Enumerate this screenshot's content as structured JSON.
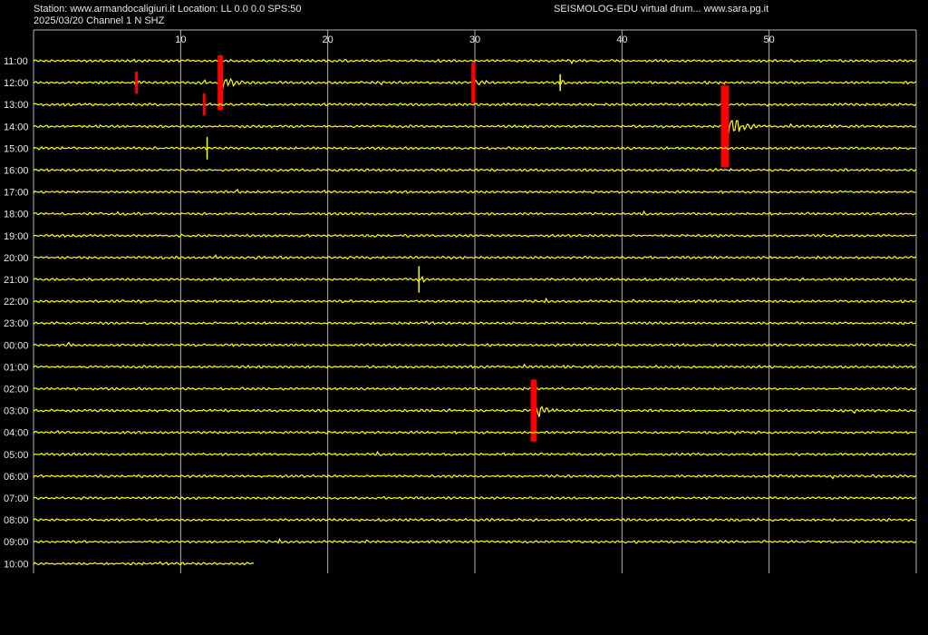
{
  "header": {
    "station_line": "Station: www.armandocaligiuri.it Location: LL 0.0 0.0 SPS:50",
    "date_channel": "2025/03/20  Channel 1 N SHZ",
    "software": "SEISMOLOG-EDU virtual drum... www.sara.pg.it"
  },
  "colors": {
    "background": "#000000",
    "trace": "#ffff00",
    "event": "#ff0000",
    "grid": "#b4b4b4",
    "text": "#e6e6e6"
  },
  "chart_data": {
    "type": "line",
    "title": "",
    "xlabel": "",
    "ylabel": "",
    "x_unit": "minutes",
    "xlim": [
      0,
      60
    ],
    "x_ticks": [
      10,
      20,
      30,
      40,
      50
    ],
    "grid": true,
    "rows": [
      "11:00",
      "12:00",
      "13:00",
      "14:00",
      "15:00",
      "16:00",
      "17:00",
      "18:00",
      "19:00",
      "20:00",
      "21:00",
      "22:00",
      "23:00",
      "00:00",
      "01:00",
      "02:00",
      "03:00",
      "04:00",
      "05:00",
      "06:00",
      "07:00",
      "08:00",
      "09:00",
      "10:00"
    ],
    "last_row_end_minute": 15,
    "events": [
      {
        "row": "12:00",
        "minute": 7.0,
        "amplitude": 12,
        "color": "red",
        "coda": 1.5
      },
      {
        "row": "12:00",
        "minute": 12.7,
        "amplitude": 30,
        "color": "red",
        "coda": 2.5
      },
      {
        "row": "12:00",
        "minute": 29.9,
        "amplitude": 22,
        "color": "red",
        "coda": 2.0
      },
      {
        "row": "12:00",
        "minute": 35.8,
        "amplitude": 9,
        "color": "yellow",
        "coda": 1.5
      },
      {
        "row": "13:00",
        "minute": 11.6,
        "amplitude": 12,
        "color": "red",
        "coda": 1.5
      },
      {
        "row": "14:00",
        "minute": 47.0,
        "amplitude": 45,
        "color": "red",
        "coda": 3.0
      },
      {
        "row": "15:00",
        "minute": 11.8,
        "amplitude": 12,
        "color": "yellow",
        "coda": 0.1
      },
      {
        "row": "21:00",
        "minute": 26.2,
        "amplitude": 14,
        "color": "yellow",
        "coda": 1.5
      },
      {
        "row": "03:00",
        "minute": 34.0,
        "amplitude": 34,
        "color": "red",
        "coda": 2.5
      }
    ]
  }
}
